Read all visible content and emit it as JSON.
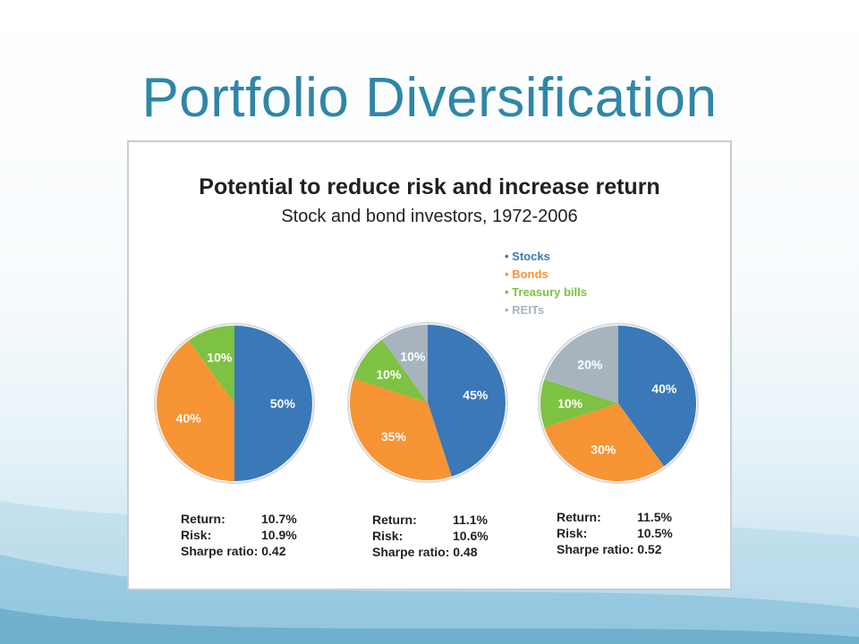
{
  "slide": {
    "title": "Portfolio Diversification"
  },
  "chart_data": {
    "type": "pie",
    "title": "Potential to reduce risk and increase return",
    "subtitle": "Stock and bond investors, 1972-2006",
    "legend_position": "top-right",
    "legend": [
      {
        "name": "Stocks",
        "color": "#3a78b8"
      },
      {
        "name": "Bonds",
        "color": "#f79433"
      },
      {
        "name": "Treasury bills",
        "color": "#7dc242"
      },
      {
        "name": "REITs",
        "color": "#a8b4bd"
      }
    ],
    "portfolios": [
      {
        "slices": [
          {
            "name": "Stocks",
            "value": 50,
            "label": "50%"
          },
          {
            "name": "Bonds",
            "value": 40,
            "label": "40%"
          },
          {
            "name": "Treasury bills",
            "value": 10,
            "label": "10%"
          }
        ],
        "stats": {
          "return_label": "Return:",
          "return_value": "10.7%",
          "risk_label": "Risk:",
          "risk_value": "10.9%",
          "sharpe_label": "Sharpe ratio:",
          "sharpe_value": "0.42"
        }
      },
      {
        "slices": [
          {
            "name": "Stocks",
            "value": 45,
            "label": "45%"
          },
          {
            "name": "Bonds",
            "value": 35,
            "label": "35%"
          },
          {
            "name": "Treasury bills",
            "value": 10,
            "label": "10%"
          },
          {
            "name": "REITs",
            "value": 10,
            "label": "10%"
          }
        ],
        "stats": {
          "return_label": "Return:",
          "return_value": "11.1%",
          "risk_label": "Risk:",
          "risk_value": "10.6%",
          "sharpe_label": "Sharpe ratio:",
          "sharpe_value": "0.48"
        }
      },
      {
        "slices": [
          {
            "name": "Stocks",
            "value": 40,
            "label": "40%"
          },
          {
            "name": "Bonds",
            "value": 30,
            "label": "30%"
          },
          {
            "name": "Treasury bills",
            "value": 10,
            "label": "10%"
          },
          {
            "name": "REITs",
            "value": 20,
            "label": "20%"
          }
        ],
        "stats": {
          "return_label": "Return:",
          "return_value": "11.5%",
          "risk_label": "Risk:",
          "risk_value": "10.5%",
          "sharpe_label": "Sharpe ratio:",
          "sharpe_value": "0.52"
        }
      }
    ]
  }
}
